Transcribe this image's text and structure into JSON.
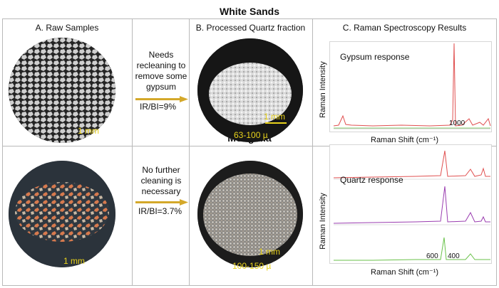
{
  "titles": {
    "top": "White Sands",
    "bottom": "Mongolia"
  },
  "column_headers": {
    "a": "A.  Raw Samples",
    "b": "B. Processed Quartz fraction",
    "c": "C. Raman Spectroscopy Results"
  },
  "white_sands": {
    "raw_scale": "1 mm",
    "note_lines": [
      "Needs",
      "recleaning to",
      "remove some",
      "gypsum"
    ],
    "ratio": "IR/BI=9%",
    "processed_scale": "1 mm",
    "grain_size": "63-100 µ",
    "spectrum": {
      "response": "Gypsum response",
      "ylabel": "Raman Intensity",
      "xlabel": "Raman Shift (cm⁻¹)",
      "peak_label": "1000"
    }
  },
  "mongolia": {
    "raw_scale": "1 mm",
    "note_lines": [
      "No further",
      "cleaning is",
      "necessary"
    ],
    "ratio": "IR/BI=3.7%",
    "processed_scale": "1 mm",
    "grain_size": "100-150 µ",
    "spectrum": {
      "response": "Quartz response",
      "ylabel": "Raman Intensity",
      "xlabel": "Raman Shift (cm⁻¹)",
      "peak_label_1": "600",
      "peak_label_2": "400"
    }
  },
  "colors": {
    "scale_label": "#e8d21b",
    "arrow": "#d4a82a",
    "spectrum_red": "#e05050",
    "spectrum_purple": "#9a3db0",
    "spectrum_green": "#6ac24a"
  }
}
